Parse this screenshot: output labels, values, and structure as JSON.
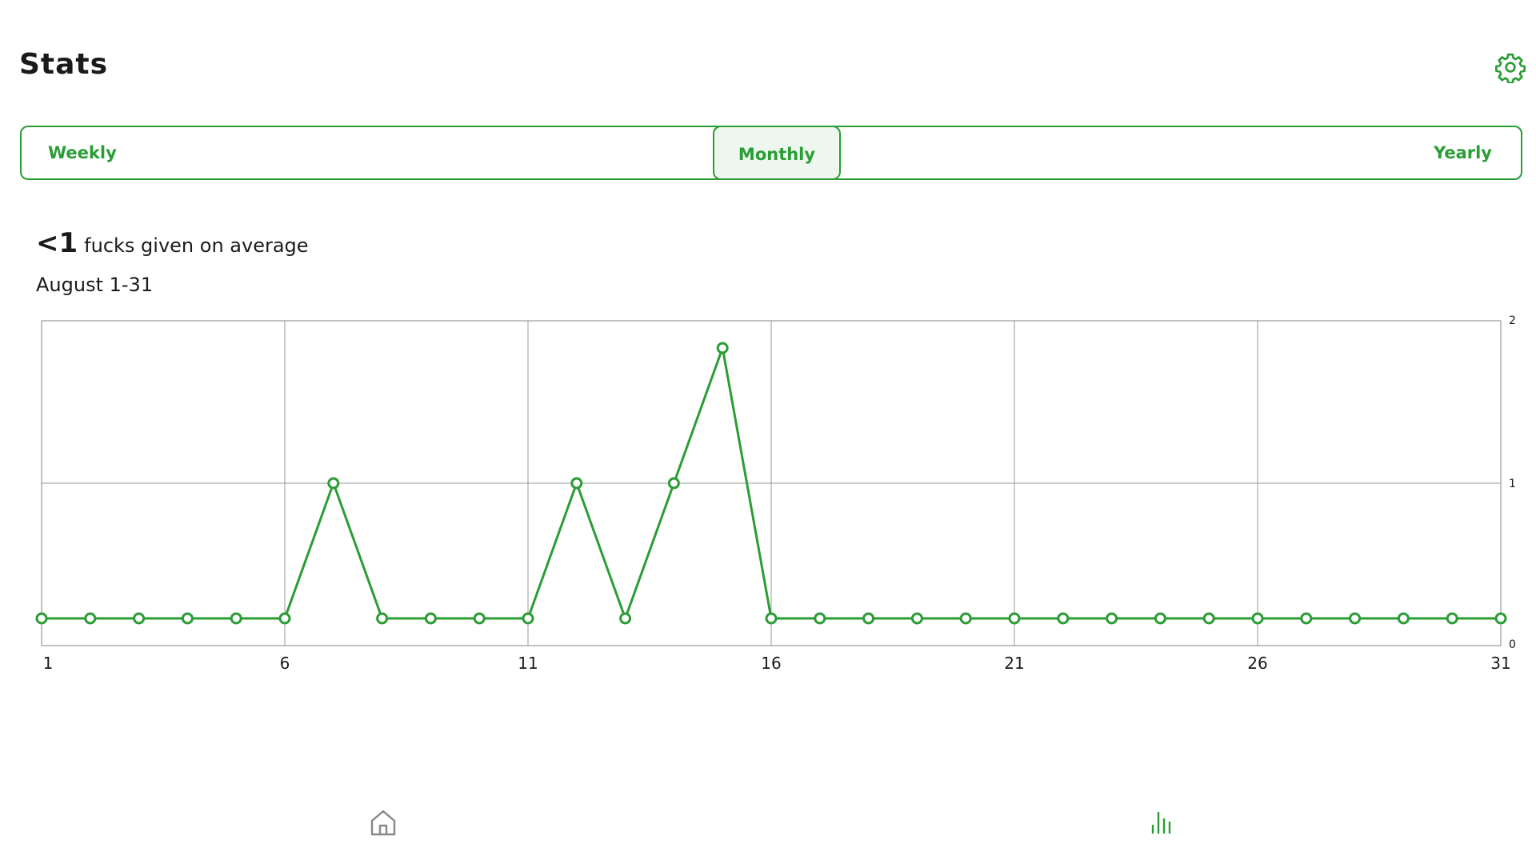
{
  "header": {
    "title": "Stats",
    "settings_icon": "gear-icon"
  },
  "tabs": [
    {
      "label": "Weekly",
      "selected": false
    },
    {
      "label": "Monthly",
      "selected": true
    },
    {
      "label": "Yearly",
      "selected": false
    }
  ],
  "summary": {
    "value": "<1",
    "text": "fucks given on average",
    "period": "August 1-31"
  },
  "chart_data": {
    "type": "line",
    "x": [
      1,
      2,
      3,
      4,
      5,
      6,
      7,
      8,
      9,
      10,
      11,
      12,
      13,
      14,
      15,
      16,
      17,
      18,
      19,
      20,
      21,
      22,
      23,
      24,
      25,
      26,
      27,
      28,
      29,
      30,
      31
    ],
    "series": [
      {
        "values": [
          0,
          0,
          0,
          0,
          0,
          0,
          1,
          0,
          0,
          0,
          0,
          1,
          0,
          1,
          2,
          0,
          0,
          0,
          0,
          0,
          0,
          0,
          0,
          0,
          0,
          0,
          0,
          0,
          0,
          0,
          0
        ]
      }
    ],
    "x_ticks": [
      "1",
      "6",
      "11",
      "16",
      "21",
      "26",
      "31"
    ],
    "y_ticks": [
      "0",
      "1",
      "2"
    ],
    "ylim": [
      0,
      2
    ],
    "grid": true,
    "color": "#2a9d34"
  },
  "bottom_nav": [
    {
      "icon": "home-icon",
      "active": false
    },
    {
      "icon": "bar-chart-icon",
      "active": true
    }
  ],
  "colors": {
    "accent": "#2a9d34",
    "inactive": "#888888"
  }
}
